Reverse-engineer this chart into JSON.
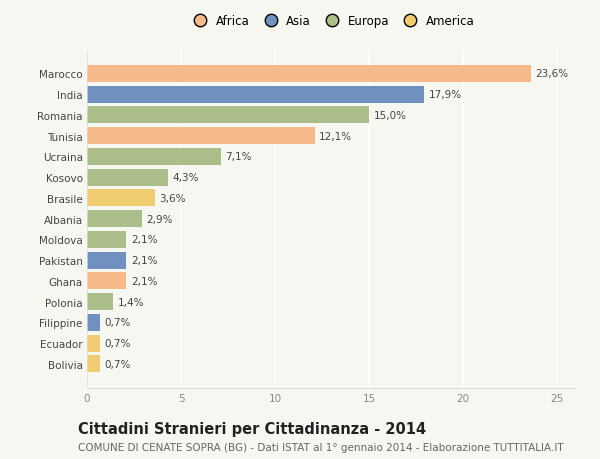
{
  "countries": [
    "Marocco",
    "India",
    "Romania",
    "Tunisia",
    "Ucraina",
    "Kosovo",
    "Brasile",
    "Albania",
    "Moldova",
    "Pakistan",
    "Ghana",
    "Polonia",
    "Filippine",
    "Ecuador",
    "Bolivia"
  ],
  "values": [
    23.6,
    17.9,
    15.0,
    12.1,
    7.1,
    4.3,
    3.6,
    2.9,
    2.1,
    2.1,
    2.1,
    1.4,
    0.7,
    0.7,
    0.7
  ],
  "labels": [
    "23,6%",
    "17,9%",
    "15,0%",
    "12,1%",
    "7,1%",
    "4,3%",
    "3,6%",
    "2,9%",
    "2,1%",
    "2,1%",
    "2,1%",
    "1,4%",
    "0,7%",
    "0,7%",
    "0,7%"
  ],
  "continents": [
    "Africa",
    "Asia",
    "Europa",
    "Africa",
    "Europa",
    "Europa",
    "America",
    "Europa",
    "Europa",
    "Asia",
    "Africa",
    "Europa",
    "Asia",
    "America",
    "America"
  ],
  "continent_colors": {
    "Africa": "#F5B98A",
    "Asia": "#7090C0",
    "Europa": "#ABBE8A",
    "America": "#F0CC70"
  },
  "legend_order": [
    "Africa",
    "Asia",
    "Europa",
    "America"
  ],
  "xlim": [
    0,
    26
  ],
  "xticks": [
    0,
    5,
    10,
    15,
    20,
    25
  ],
  "title": "Cittadini Stranieri per Cittadinanza - 2014",
  "subtitle": "COMUNE DI CENATE SOPRA (BG) - Dati ISTAT al 1° gennaio 2014 - Elaborazione TUTTITALIA.IT",
  "background_color": "#f7f7f2",
  "bar_height": 0.82,
  "grid_color": "#ffffff",
  "title_fontsize": 10.5,
  "subtitle_fontsize": 7.5,
  "label_fontsize": 7.5,
  "tick_fontsize": 7.5,
  "legend_fontsize": 8.5
}
